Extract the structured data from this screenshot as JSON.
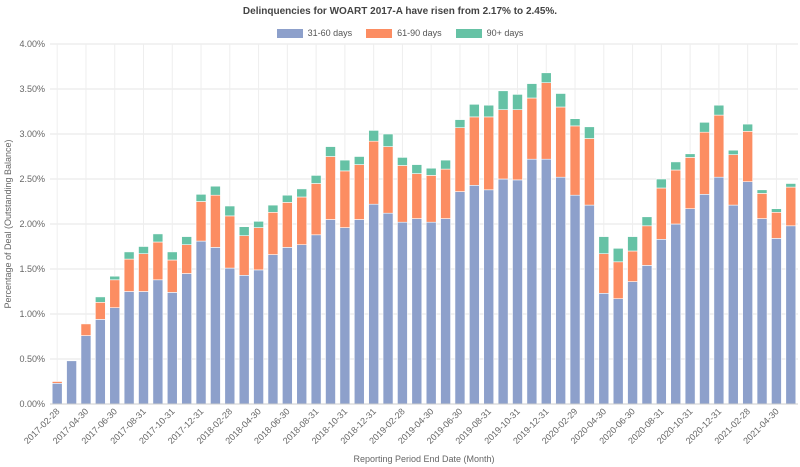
{
  "chart_data": {
    "type": "bar",
    "stacked": true,
    "title": "Delinquencies for WOART 2017-A have risen from 2.17% to 2.45%.",
    "xlabel": "Reporting Period End Date (Month)",
    "ylabel": "Percentage of Deal (Outstanding Balance)",
    "ylim": [
      0,
      4
    ],
    "yticks": [
      "0.00%",
      "0.50%",
      "1.00%",
      "1.50%",
      "2.00%",
      "2.50%",
      "3.00%",
      "3.50%",
      "4.00%"
    ],
    "grid": true,
    "legend_position": "top",
    "categories": [
      "2017-02-28",
      "2017-03-31",
      "2017-04-30",
      "2017-05-31",
      "2017-06-30",
      "2017-07-31",
      "2017-08-31",
      "2017-09-30",
      "2017-10-31",
      "2017-11-30",
      "2017-12-31",
      "2018-01-31",
      "2018-02-28",
      "2018-03-31",
      "2018-04-30",
      "2018-05-31",
      "2018-06-30",
      "2018-07-31",
      "2018-08-31",
      "2018-09-30",
      "2018-10-31",
      "2018-11-30",
      "2018-12-31",
      "2019-01-31",
      "2019-02-28",
      "2019-03-31",
      "2019-04-30",
      "2019-05-31",
      "2019-06-30",
      "2019-07-31",
      "2019-08-31",
      "2019-09-30",
      "2019-10-31",
      "2019-11-30",
      "2019-12-31",
      "2020-01-31",
      "2020-02-29",
      "2020-03-31",
      "2020-04-30",
      "2020-05-31",
      "2020-06-30",
      "2020-07-31",
      "2020-08-31",
      "2020-09-30",
      "2020-10-31",
      "2020-11-30",
      "2020-12-31",
      "2021-01-31",
      "2021-02-28",
      "2021-03-31",
      "2021-04-30",
      "2021-05-31"
    ],
    "series": [
      {
        "name": "31-60 days",
        "color": "#8da0cb",
        "values": [
          0.23,
          0.48,
          0.76,
          0.94,
          1.07,
          1.25,
          1.25,
          1.38,
          1.24,
          1.45,
          1.81,
          1.74,
          1.51,
          1.43,
          1.49,
          1.66,
          1.74,
          1.77,
          1.88,
          2.05,
          1.96,
          2.05,
          2.22,
          2.12,
          2.02,
          2.06,
          2.02,
          2.06,
          2.36,
          2.43,
          2.38,
          2.5,
          2.49,
          2.72,
          2.72,
          2.52,
          2.32,
          2.21,
          1.23,
          1.17,
          1.36,
          1.54,
          1.83,
          2.0,
          2.17,
          2.33,
          2.52,
          2.21,
          2.47,
          2.06,
          1.84,
          1.98
        ]
      },
      {
        "name": "61-90 days",
        "color": "#fc8d62",
        "values": [
          0.02,
          0.0,
          0.13,
          0.19,
          0.31,
          0.36,
          0.42,
          0.42,
          0.36,
          0.32,
          0.44,
          0.58,
          0.58,
          0.44,
          0.47,
          0.47,
          0.5,
          0.53,
          0.57,
          0.7,
          0.63,
          0.61,
          0.7,
          0.74,
          0.63,
          0.5,
          0.52,
          0.55,
          0.71,
          0.76,
          0.81,
          0.77,
          0.78,
          0.68,
          0.85,
          0.78,
          0.77,
          0.74,
          0.44,
          0.41,
          0.34,
          0.44,
          0.57,
          0.6,
          0.57,
          0.69,
          0.69,
          0.56,
          0.56,
          0.28,
          0.29,
          0.43
        ]
      },
      {
        "name": "90+ days",
        "color": "#66c2a5",
        "values": [
          0.0,
          0.0,
          0.0,
          0.06,
          0.04,
          0.08,
          0.08,
          0.09,
          0.09,
          0.09,
          0.08,
          0.1,
          0.11,
          0.1,
          0.07,
          0.08,
          0.08,
          0.09,
          0.09,
          0.11,
          0.12,
          0.09,
          0.12,
          0.14,
          0.09,
          0.1,
          0.08,
          0.1,
          0.09,
          0.14,
          0.13,
          0.21,
          0.17,
          0.16,
          0.11,
          0.15,
          0.08,
          0.13,
          0.19,
          0.15,
          0.16,
          0.1,
          0.1,
          0.09,
          0.04,
          0.11,
          0.11,
          0.05,
          0.08,
          0.04,
          0.04,
          0.04
        ]
      }
    ]
  }
}
